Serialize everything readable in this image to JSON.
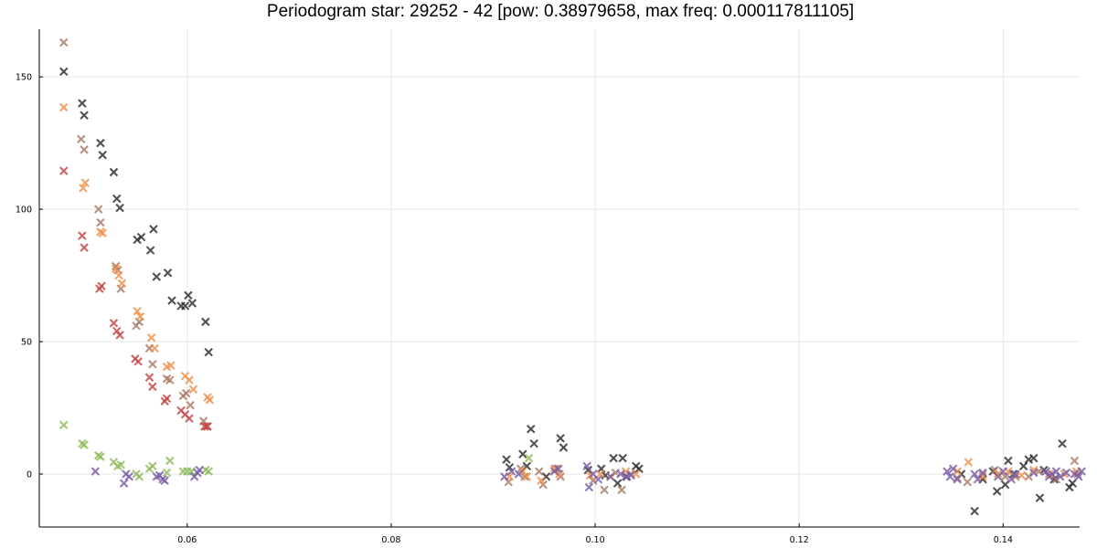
{
  "chart_data": {
    "type": "scatter",
    "title": "Periodogram star: 29252 - 42 [pow: 0.38979658, max freq: 0.000117811105]",
    "xlabel": "",
    "ylabel": "",
    "xlim": [
      0.0455,
      0.1475
    ],
    "ylim": [
      -20,
      168
    ],
    "xticks": [
      0.06,
      0.08,
      0.1,
      0.12,
      0.14
    ],
    "xtick_labels": [
      "0.06",
      "0.08",
      "0.10",
      "0.12",
      "0.14"
    ],
    "yticks": [
      0,
      50,
      100,
      150
    ],
    "ytick_labels": [
      "0",
      "50",
      "100",
      "150"
    ],
    "grid": true,
    "legend": false,
    "marker": "x",
    "series": [
      {
        "color": "#2b2b2b",
        "points": [
          [
            0.0479,
            152
          ],
          [
            0.0497,
            140
          ],
          [
            0.0499,
            135.5
          ],
          [
            0.0515,
            125
          ],
          [
            0.0517,
            120.5
          ],
          [
            0.0528,
            114
          ],
          [
            0.0531,
            104
          ],
          [
            0.0534,
            100.5
          ],
          [
            0.0551,
            88.5
          ],
          [
            0.0555,
            89.5
          ],
          [
            0.0564,
            84.5
          ],
          [
            0.0567,
            92.5
          ],
          [
            0.057,
            74.5
          ],
          [
            0.0581,
            76
          ],
          [
            0.0585,
            65.5
          ],
          [
            0.0594,
            63.5
          ],
          [
            0.0598,
            63.5
          ],
          [
            0.0601,
            67.5
          ],
          [
            0.0605,
            64.5
          ],
          [
            0.0618,
            57.5
          ],
          [
            0.0621,
            46
          ],
          [
            0.0913,
            5.5
          ],
          [
            0.0916,
            2.5
          ],
          [
            0.0929,
            7.5
          ],
          [
            0.0933,
            3
          ],
          [
            0.0937,
            17
          ],
          [
            0.094,
            11.5
          ],
          [
            0.0952,
            -1
          ],
          [
            0.0966,
            13.5
          ],
          [
            0.0969,
            10
          ],
          [
            0.0993,
            1.5
          ],
          [
            0.1006,
            2
          ],
          [
            0.101,
            -0.5
          ],
          [
            0.1018,
            6
          ],
          [
            0.1022,
            -3.5
          ],
          [
            0.1027,
            6
          ],
          [
            0.1031,
            -1
          ],
          [
            0.104,
            3
          ],
          [
            0.1043,
            2
          ],
          [
            0.1359,
            0
          ],
          [
            0.1372,
            -14
          ],
          [
            0.138,
            -2
          ],
          [
            0.139,
            1
          ],
          [
            0.1394,
            -6.5
          ],
          [
            0.1402,
            -4
          ],
          [
            0.1405,
            5
          ],
          [
            0.141,
            0
          ],
          [
            0.142,
            3
          ],
          [
            0.1425,
            5.5
          ],
          [
            0.143,
            6
          ],
          [
            0.1436,
            -9
          ],
          [
            0.144,
            1.5
          ],
          [
            0.145,
            -2
          ],
          [
            0.1458,
            11.5
          ],
          [
            0.1465,
            -5
          ],
          [
            0.1468,
            -3.5
          ]
        ]
      },
      {
        "color": "#a87a66",
        "points": [
          [
            0.0479,
            163
          ],
          [
            0.0496,
            126.5
          ],
          [
            0.0499,
            122.5
          ],
          [
            0.0513,
            100
          ],
          [
            0.0515,
            95
          ],
          [
            0.053,
            78.5
          ],
          [
            0.0532,
            77
          ],
          [
            0.0535,
            70
          ],
          [
            0.055,
            56
          ],
          [
            0.0553,
            57.5
          ],
          [
            0.0563,
            47.5
          ],
          [
            0.0566,
            41.5
          ],
          [
            0.058,
            36
          ],
          [
            0.0583,
            35.5
          ],
          [
            0.0596,
            29.5
          ],
          [
            0.0599,
            30.5
          ],
          [
            0.0603,
            26
          ],
          [
            0.0616,
            20
          ],
          [
            0.0619,
            18
          ],
          [
            0.0915,
            -3
          ],
          [
            0.0927,
            2
          ],
          [
            0.0931,
            -1
          ],
          [
            0.0945,
            1
          ],
          [
            0.0949,
            -4
          ],
          [
            0.0962,
            2
          ],
          [
            0.0966,
            -1
          ],
          [
            0.0998,
            -2.5
          ],
          [
            0.1009,
            -6
          ],
          [
            0.102,
            0.5
          ],
          [
            0.1026,
            -6
          ],
          [
            0.1035,
            0
          ],
          [
            0.1355,
            -1.5
          ],
          [
            0.1365,
            -3
          ],
          [
            0.138,
            0
          ],
          [
            0.1392,
            1.5
          ],
          [
            0.1402,
            -1
          ],
          [
            0.1412,
            -1
          ],
          [
            0.1425,
            -1
          ],
          [
            0.1435,
            1
          ],
          [
            0.1452,
            -2
          ],
          [
            0.147,
            5
          ],
          [
            0.1473,
            0
          ]
        ]
      },
      {
        "color": "#f0904a",
        "points": [
          [
            0.0479,
            138.5
          ],
          [
            0.0498,
            108
          ],
          [
            0.05,
            110
          ],
          [
            0.0515,
            91.5
          ],
          [
            0.0517,
            91
          ],
          [
            0.053,
            77.5
          ],
          [
            0.0533,
            75
          ],
          [
            0.0536,
            72
          ],
          [
            0.0551,
            61.5
          ],
          [
            0.0554,
            59.5
          ],
          [
            0.0565,
            51.5
          ],
          [
            0.0568,
            47.5
          ],
          [
            0.058,
            40.5
          ],
          [
            0.0584,
            41
          ],
          [
            0.0598,
            37
          ],
          [
            0.0602,
            35.5
          ],
          [
            0.0606,
            32
          ],
          [
            0.062,
            29
          ],
          [
            0.0622,
            28
          ],
          [
            0.0916,
            -1
          ],
          [
            0.0929,
            1
          ],
          [
            0.0933,
            -1
          ],
          [
            0.0947,
            -2.5
          ],
          [
            0.096,
            2
          ],
          [
            0.0965,
            0
          ],
          [
            0.0995,
            -0.5
          ],
          [
            0.1005,
            0
          ],
          [
            0.1015,
            -1
          ],
          [
            0.103,
            1
          ],
          [
            0.104,
            0
          ],
          [
            0.1355,
            1
          ],
          [
            0.1366,
            4.5
          ],
          [
            0.138,
            -1
          ],
          [
            0.1395,
            0
          ],
          [
            0.1405,
            1
          ],
          [
            0.1418,
            -0.5
          ],
          [
            0.143,
            1.5
          ],
          [
            0.1445,
            0
          ],
          [
            0.146,
            0
          ],
          [
            0.1472,
            1
          ]
        ]
      },
      {
        "color": "#c44440",
        "points": [
          [
            0.0479,
            114.5
          ],
          [
            0.0497,
            90
          ],
          [
            0.0499,
            85.5
          ],
          [
            0.0514,
            70
          ],
          [
            0.0516,
            71
          ],
          [
            0.0528,
            57
          ],
          [
            0.0531,
            54
          ],
          [
            0.0534,
            52.5
          ],
          [
            0.0549,
            43.5
          ],
          [
            0.0552,
            42.5
          ],
          [
            0.0563,
            36.5
          ],
          [
            0.0566,
            33
          ],
          [
            0.0578,
            27.5
          ],
          [
            0.058,
            28.5
          ],
          [
            0.0594,
            24
          ],
          [
            0.0598,
            22.5
          ],
          [
            0.0602,
            21
          ],
          [
            0.0617,
            18
          ],
          [
            0.062,
            18
          ]
        ]
      },
      {
        "color": "#8fbb5a",
        "points": [
          [
            0.0479,
            18.5
          ],
          [
            0.0497,
            11.5
          ],
          [
            0.0499,
            11
          ],
          [
            0.0513,
            7
          ],
          [
            0.0515,
            6.5
          ],
          [
            0.0528,
            4.5
          ],
          [
            0.0532,
            3
          ],
          [
            0.0535,
            3.5
          ],
          [
            0.055,
            0
          ],
          [
            0.0553,
            -1
          ],
          [
            0.0563,
            2
          ],
          [
            0.0566,
            3
          ],
          [
            0.058,
            0.5
          ],
          [
            0.0583,
            5
          ],
          [
            0.0596,
            1
          ],
          [
            0.06,
            1
          ],
          [
            0.0604,
            1
          ],
          [
            0.0618,
            1.5
          ],
          [
            0.0621,
            1
          ],
          [
            0.0935,
            6
          ]
        ]
      },
      {
        "color": "#7a5ca8",
        "points": [
          [
            0.051,
            1
          ],
          [
            0.0538,
            -3.5
          ],
          [
            0.054,
            0
          ],
          [
            0.0543,
            -1
          ],
          [
            0.057,
            -1
          ],
          [
            0.0573,
            -0.5
          ],
          [
            0.0576,
            -2
          ],
          [
            0.0578,
            -2.5
          ],
          [
            0.0607,
            -1
          ],
          [
            0.061,
            0.5
          ],
          [
            0.0612,
            1.5
          ],
          [
            0.0911,
            -1
          ],
          [
            0.0918,
            1
          ],
          [
            0.0925,
            0
          ],
          [
            0.096,
            1
          ],
          [
            0.0964,
            2
          ],
          [
            0.0992,
            3
          ],
          [
            0.0994,
            -5
          ],
          [
            0.0998,
            0
          ],
          [
            0.1003,
            -2
          ],
          [
            0.1015,
            -1
          ],
          [
            0.1025,
            0
          ],
          [
            0.103,
            -1
          ],
          [
            0.1035,
            -0.5
          ],
          [
            0.1345,
            1
          ],
          [
            0.1348,
            -1
          ],
          [
            0.1351,
            2
          ],
          [
            0.1355,
            -2
          ],
          [
            0.1372,
            0
          ],
          [
            0.1375,
            -2
          ],
          [
            0.138,
            0.5
          ],
          [
            0.1395,
            -1
          ],
          [
            0.14,
            1
          ],
          [
            0.1408,
            -2
          ],
          [
            0.1412,
            0
          ],
          [
            0.143,
            0.5
          ],
          [
            0.1442,
            1
          ],
          [
            0.1445,
            -1
          ],
          [
            0.1448,
            0
          ],
          [
            0.1452,
            1
          ],
          [
            0.1456,
            -1
          ],
          [
            0.1462,
            0.5
          ],
          [
            0.147,
            0
          ],
          [
            0.1474,
            -1
          ],
          [
            0.1477,
            1
          ]
        ]
      }
    ]
  }
}
